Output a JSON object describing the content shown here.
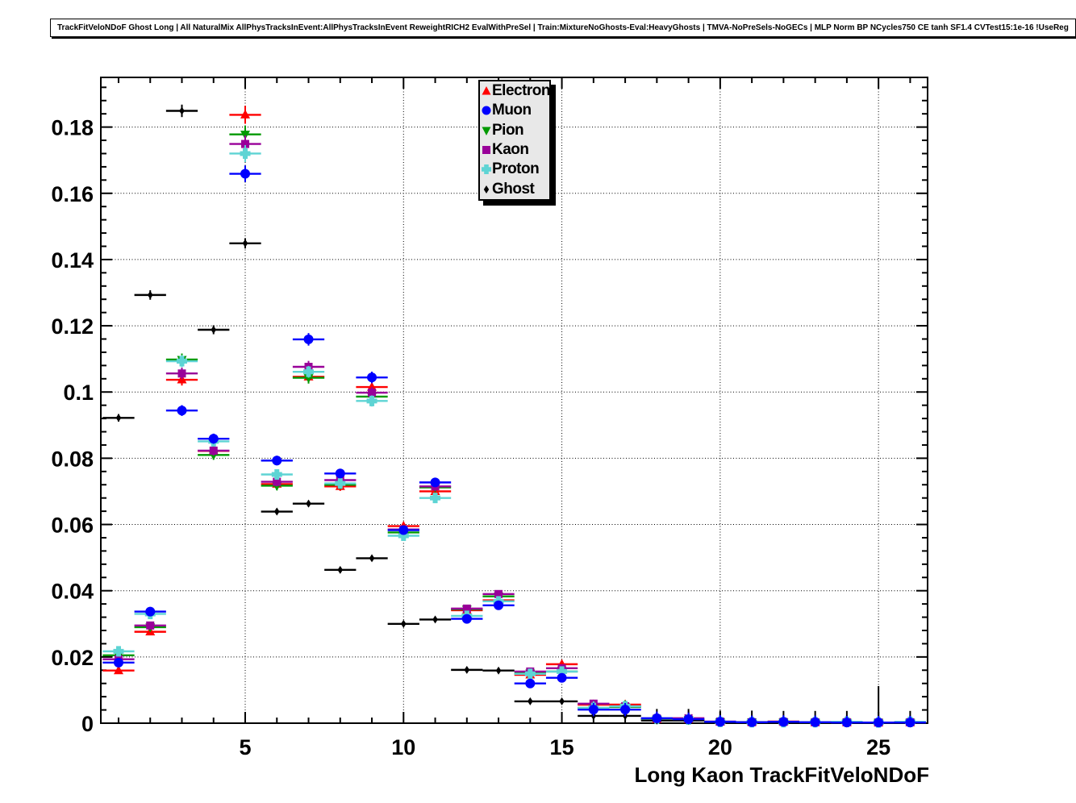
{
  "page": {
    "title": "TrackFitVeloNDoF Ghost Long | All NaturalMix AllPhysTracksInEvent:AllPhysTracksInEvent ReweightRICH2 EvalWithPreSel | Train:MixtureNoGhosts-Eval:HeavyGhosts | TMVA-NoPreSels-NoGECs | MLP Norm BP NCycles750 CE tanh SF1.4 CVTest15:1e-16 !UseReg"
  },
  "chart_data": {
    "type": "scatter",
    "title": "TrackFitVeloNDoF Ghost Long | All NaturalMix AllPhysTracksInEvent:AllPhysTracksInEvent ReweightRICH2 EvalWithPreSel | Train:MixtureNoGhosts-Eval:HeavyGhosts | TMVA-NoPreSels-NoGECs | MLP Norm BP NCycles750 CE tanh SF1.4 CVTest15:1e-16 !UseReg",
    "xlabel": "Long Kaon TrackFitVeloNDoF",
    "ylabel": "",
    "xlim": [
      0.44,
      26.55
    ],
    "ylim": [
      0,
      0.195
    ],
    "xticks": [
      5,
      10,
      15,
      20,
      25
    ],
    "yticks": [
      0,
      0.02,
      0.04,
      0.06,
      0.08,
      0.1,
      0.12,
      0.14,
      0.16,
      0.18
    ],
    "grid": true,
    "legend_position": "inside-top-center",
    "x_bin_halfwidth": 0.5,
    "x": [
      1,
      2,
      3,
      4,
      5,
      6,
      7,
      8,
      9,
      10,
      11,
      12,
      13,
      14,
      15,
      16,
      17,
      18,
      19,
      20,
      21,
      22,
      23,
      24,
      25,
      26
    ],
    "series": [
      {
        "name": "Electron",
        "color": "#ff0000",
        "marker": "triangle-up",
        "values": [
          0.0159,
          0.0276,
          0.1037,
          0.0822,
          0.1837,
          0.0722,
          0.1046,
          0.0715,
          0.1015,
          0.0595,
          0.07,
          0.0341,
          0.0371,
          0.0146,
          0.0178,
          0.0056,
          0.0056,
          0.0012,
          0.0012,
          0.0004,
          0.0003,
          0.0005,
          0.0002,
          0.0002,
          0.0002,
          0.0002
        ]
      },
      {
        "name": "Muon",
        "color": "#0000ff",
        "marker": "circle",
        "values": [
          0.0183,
          0.0337,
          0.0944,
          0.0859,
          0.1659,
          0.0793,
          0.1159,
          0.0754,
          0.1044,
          0.0583,
          0.0727,
          0.0315,
          0.0356,
          0.012,
          0.0137,
          0.0041,
          0.0041,
          0.0015,
          0.0012,
          0.0004,
          0.0003,
          0.0004,
          0.0003,
          0.0002,
          0.0002,
          0.0002
        ]
      },
      {
        "name": "Pion",
        "color": "#009900",
        "marker": "triangle-down",
        "values": [
          0.0205,
          0.029,
          0.1098,
          0.081,
          0.1778,
          0.0717,
          0.1043,
          0.072,
          0.0986,
          0.0576,
          0.0712,
          0.0344,
          0.0383,
          0.0151,
          0.0156,
          0.0046,
          0.0049,
          0.0012,
          0.001,
          0.0004,
          0.0003,
          0.0003,
          0.0002,
          0.0002,
          0.0002,
          0.0002
        ]
      },
      {
        "name": "Kaon",
        "color": "#990099",
        "marker": "square",
        "values": [
          0.0193,
          0.0295,
          0.1056,
          0.0823,
          0.1749,
          0.0729,
          0.1076,
          0.0734,
          0.0998,
          0.0585,
          0.0715,
          0.0346,
          0.039,
          0.0156,
          0.0166,
          0.0059,
          0.0051,
          0.0014,
          0.0015,
          0.0005,
          0.0003,
          0.0004,
          0.0003,
          0.0003,
          0.0002,
          0.0003
        ]
      },
      {
        "name": "Proton",
        "color": "#5ed4d4",
        "marker": "cross",
        "values": [
          0.0217,
          0.033,
          0.1093,
          0.0851,
          0.172,
          0.0751,
          0.1061,
          0.0724,
          0.0973,
          0.0566,
          0.068,
          0.0324,
          0.0368,
          0.0149,
          0.0156,
          0.0046,
          0.0051,
          0.0013,
          0.0011,
          0.0004,
          0.0003,
          0.0003,
          0.0003,
          0.0004,
          0.0002,
          0.0004
        ]
      },
      {
        "name": "Ghost",
        "color": "#000000",
        "marker": "diamond",
        "values": [
          0.0922,
          0.1293,
          0.1849,
          0.1188,
          0.1449,
          0.0639,
          0.0663,
          0.0463,
          0.0498,
          0.03,
          0.0313,
          0.0161,
          0.0159,
          0.0066,
          0.0066,
          0.0022,
          0.0022,
          0.0008,
          0.0008,
          0.0003,
          0.0003,
          0.0002,
          0.0002,
          0.0002,
          0.0002,
          0.0002
        ]
      }
    ]
  }
}
